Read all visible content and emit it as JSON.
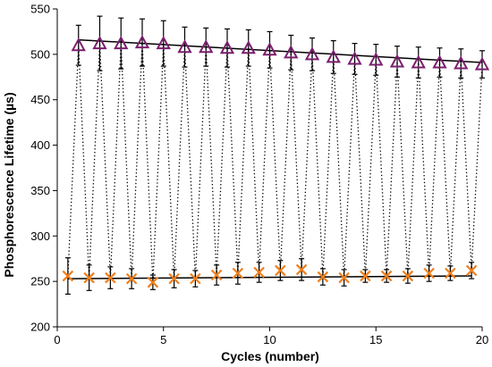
{
  "chart_data": {
    "type": "scatter",
    "xlabel": "Cycles (number)",
    "ylabel": "Phosphorescence Lifetime (µs)",
    "xlim": [
      0,
      20
    ],
    "ylim": [
      200,
      550
    ],
    "xticks": [
      0,
      5,
      10,
      15,
      20
    ],
    "yticks": [
      200,
      250,
      300,
      350,
      400,
      450,
      500,
      550
    ],
    "grid": false,
    "connector": "dotted zig-zag alternating between the two series",
    "series": [
      {
        "marker": "triangle",
        "color": "#7B1F6E",
        "x": [
          1,
          2,
          3,
          4,
          5,
          6,
          7,
          8,
          9,
          10,
          11,
          12,
          13,
          14,
          15,
          16,
          17,
          18,
          19,
          20
        ],
        "y": [
          510,
          512,
          512,
          513,
          512,
          508,
          508,
          507,
          507,
          505,
          502,
          500,
          497,
          495,
          494,
          492,
          491,
          491,
          490,
          489
        ],
        "error": [
          22,
          30,
          28,
          26,
          25,
          22,
          21,
          21,
          20,
          20,
          19,
          18,
          18,
          17,
          17,
          17,
          17,
          16,
          16,
          15
        ],
        "trendline": [
          [
            1,
            516
          ],
          [
            20,
            491
          ]
        ]
      },
      {
        "marker": "x",
        "color": "#F07F1C",
        "x": [
          0.5,
          1.5,
          2.5,
          3.5,
          4.5,
          5.5,
          6.5,
          7.5,
          8.5,
          9.5,
          10.5,
          11.5,
          12.5,
          13.5,
          14.5,
          15.5,
          16.5,
          17.5,
          18.5,
          19.5
        ],
        "y": [
          256,
          254,
          254,
          253,
          249,
          253,
          253,
          257,
          259,
          260,
          262,
          263,
          255,
          254,
          256,
          256,
          256,
          259,
          259,
          262
        ],
        "error": [
          20,
          14,
          12,
          11,
          8,
          10,
          9,
          11,
          12,
          11,
          11,
          12,
          9,
          9,
          7,
          7,
          8,
          9,
          8,
          9
        ],
        "trendline": [
          [
            0.5,
            253
          ],
          [
            19.5,
            256
          ]
        ]
      }
    ]
  }
}
